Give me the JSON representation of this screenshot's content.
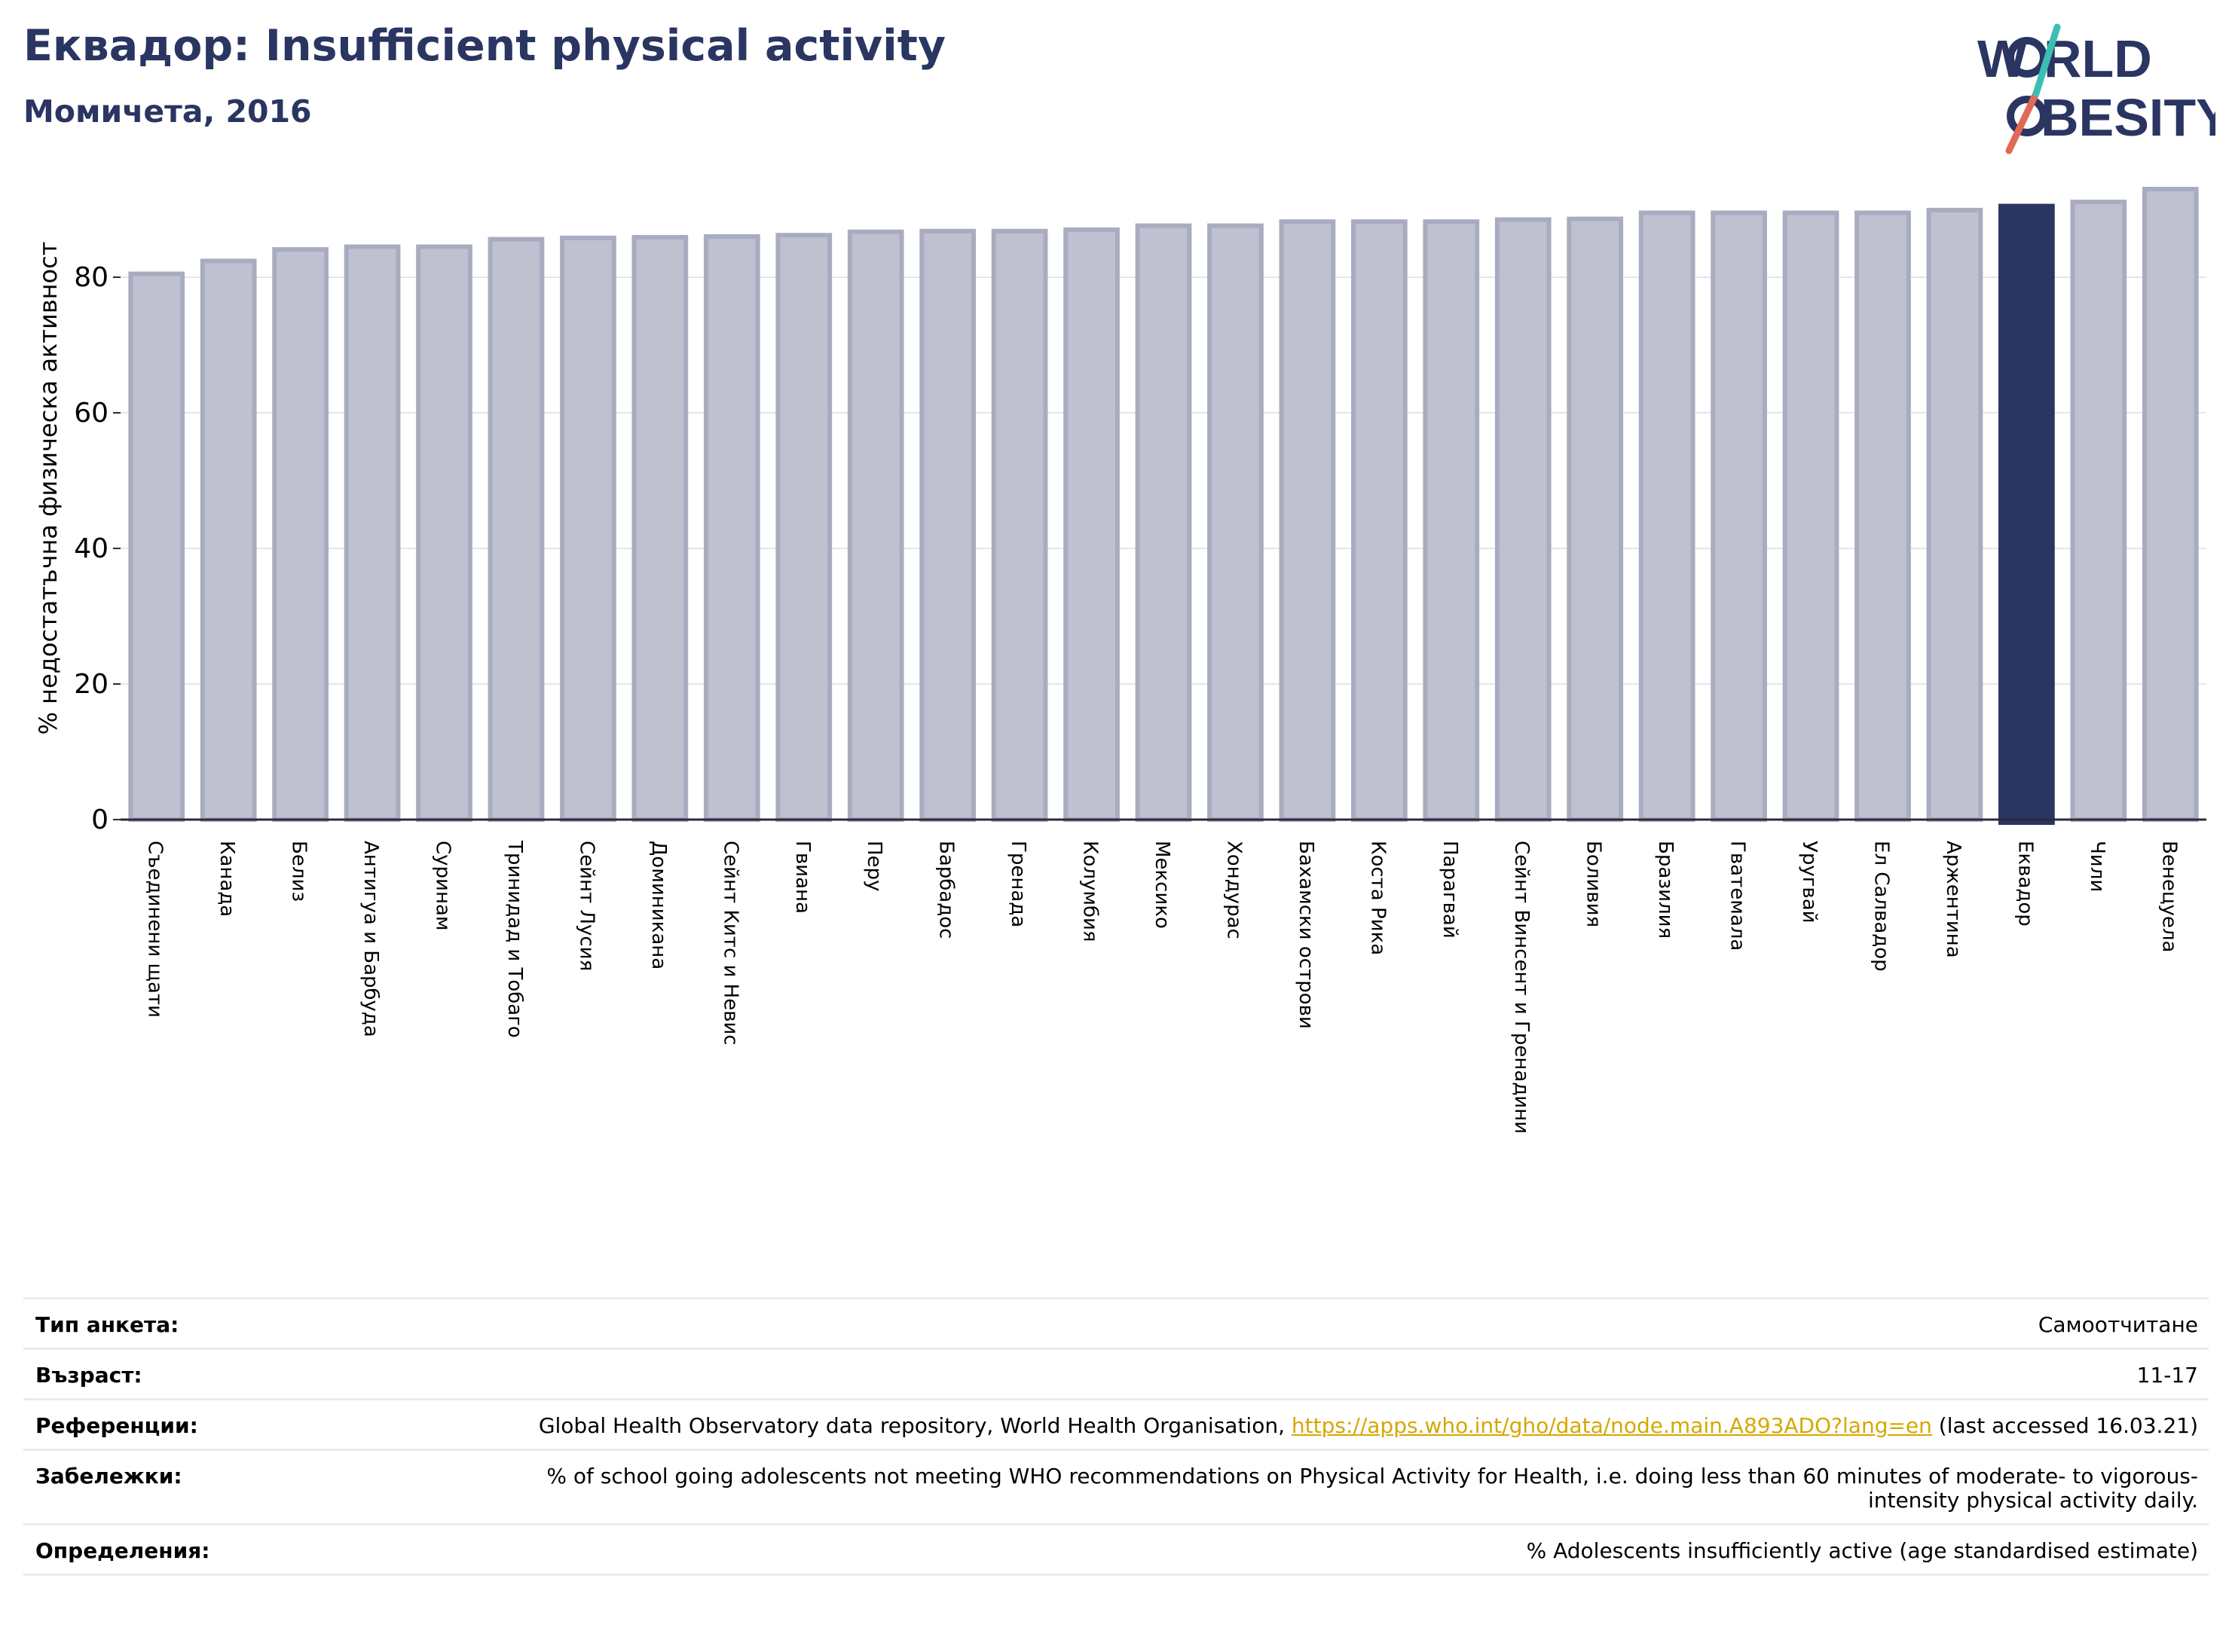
{
  "header": {
    "title": "Еквадор: Insufficient physical activity",
    "subtitle": "Момичета, 2016"
  },
  "logo": {
    "line1": "W",
    "line1b": "RLD",
    "line2": "BESITY",
    "text_color": "#2a3562",
    "slash_top_color": "#3bbfb3",
    "slash_bottom_color": "#e26a55"
  },
  "chart_data": {
    "type": "bar",
    "ylabel": "% недостатъчна физическа активност",
    "ylim": [
      0,
      95
    ],
    "yticks": [
      0,
      20,
      40,
      60,
      80
    ],
    "grid": true,
    "categories": [
      "Съединени щати",
      "Канада",
      "Белиз",
      "Антигуа и Барбуда",
      "Суринам",
      "Тринидад и Тобаго",
      "Сейнт Лусия",
      "Доминикана",
      "Сейнт Китс и Невис",
      "Гвиана",
      "Перу",
      "Барбадос",
      "Гренада",
      "Колумбия",
      "Мексико",
      "Хондурас",
      "Бахамски острови",
      "Коста Рика",
      "Парагвай",
      "Сейнт Винсент и Гренадини",
      "Боливия",
      "Бразилия",
      "Гватемала",
      "Уругвай",
      "Ел Салвадор",
      "Аржентина",
      "Еквадор",
      "Чили",
      "Венецуела"
    ],
    "values": [
      80.5,
      82.4,
      84.1,
      84.5,
      84.5,
      85.6,
      85.8,
      85.9,
      86.0,
      86.2,
      86.7,
      86.8,
      86.8,
      87.0,
      87.6,
      87.6,
      88.2,
      88.2,
      88.2,
      88.5,
      88.6,
      89.5,
      89.5,
      89.5,
      89.5,
      89.9,
      90.5,
      91.1,
      93.0
    ],
    "highlight": "Еквадор",
    "colors": {
      "bar_fill": "#bfc1d0",
      "bar_edge": "#a9acc0",
      "highlight": "#2a3562",
      "grid": "#e6e6ea",
      "axis": "#2b2b3a"
    }
  },
  "meta": {
    "survey_type_label": "Тип анкета:",
    "survey_type_value": "Самоотчитане",
    "age_label": "Възраст:",
    "age_value": "11-17",
    "references_label": "Референции:",
    "references_text": "Global Health Observatory data repository, World Health Organisation, ",
    "references_link": "https://apps.who.int/gho/data/node.main.A893ADO?lang=en",
    "references_tail": " (last accessed 16.03.21)",
    "notes_label": "Забележки:",
    "notes_value": "% of school going adolescents not meeting WHO recommendations on Physical Activity for Health, i.e. doing less than 60 minutes of moderate- to vigorous-intensity physical activity daily.",
    "definitions_label": "Определения:",
    "definitions_value": "% Adolescents insufficiently active (age standardised estimate)"
  }
}
